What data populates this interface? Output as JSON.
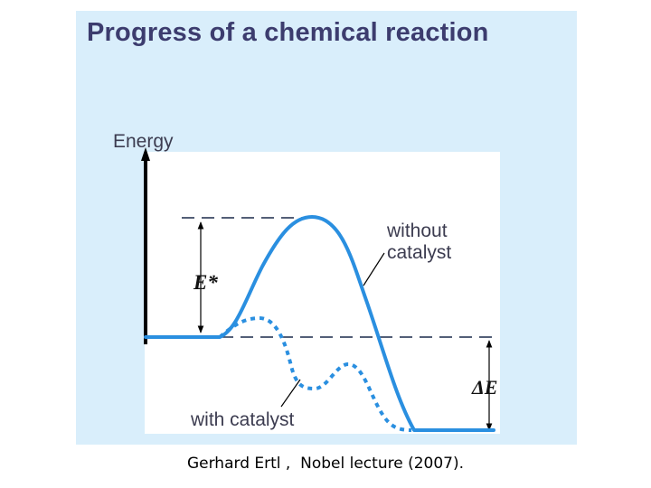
{
  "slide": {
    "title": "Progress of a chemical reaction"
  },
  "diagram": {
    "y_axis_label": "Energy",
    "activation_energy_label": "E*",
    "reaction_energy_label": "ΔE",
    "curve_without_catalyst_label_line1": "without",
    "curve_without_catalyst_label_line2": "catalyst",
    "curve_with_catalyst_label": "with catalyst",
    "colors": {
      "panel_background": "#d9eefb",
      "plot_background": "#ffffff",
      "curve": "#2a8fe0",
      "axis": "#000000",
      "title": "#3c3c6e"
    }
  },
  "caption": {
    "author": "Gerhard Ertl ,",
    "source": "Nobel lecture (2007)."
  }
}
